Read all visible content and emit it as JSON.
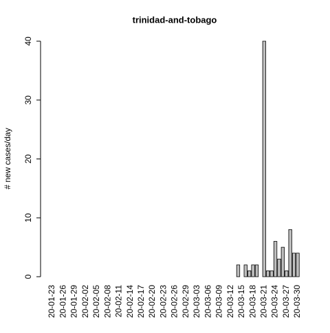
{
  "chart_data": {
    "type": "bar",
    "title": "trinidad-and-tobago",
    "y_label": "# new cases/day",
    "categories": [
      "20-01-23",
      null,
      null,
      "20-01-26",
      null,
      null,
      "20-01-29",
      null,
      null,
      "20-02-02",
      null,
      null,
      "20-02-05",
      null,
      null,
      "20-02-08",
      null,
      null,
      "20-02-11",
      null,
      null,
      "20-02-14",
      null,
      null,
      "20-02-17",
      null,
      null,
      "20-02-20",
      null,
      null,
      "20-02-23",
      null,
      null,
      "20-02-26",
      null,
      null,
      "20-02-29",
      null,
      null,
      "20-03-03",
      null,
      null,
      "20-03-06",
      null,
      null,
      "20-03-09",
      null,
      null,
      "20-03-12",
      null,
      null,
      "20-03-15",
      null,
      null,
      "20-03-18",
      null,
      null,
      "20-03-21",
      null,
      null,
      "20-03-24",
      null,
      null,
      "20-03-27",
      null,
      null,
      "20-03-30"
    ],
    "values": [
      0,
      0,
      0,
      0,
      0,
      0,
      0,
      0,
      0,
      0,
      0,
      0,
      0,
      0,
      0,
      0,
      0,
      0,
      0,
      0,
      0,
      0,
      0,
      0,
      0,
      0,
      0,
      0,
      0,
      0,
      0,
      0,
      0,
      0,
      0,
      0,
      0,
      0,
      0,
      0,
      0,
      0,
      0,
      0,
      0,
      0,
      0,
      0,
      0,
      0,
      2,
      0,
      2,
      1,
      2,
      2,
      0,
      40,
      1,
      1,
      6,
      3,
      5,
      1,
      8,
      4,
      4
    ],
    "color": "#bebebe",
    "ylim": [
      0,
      40
    ],
    "yticks": [
      0,
      10,
      20,
      30,
      40
    ]
  }
}
